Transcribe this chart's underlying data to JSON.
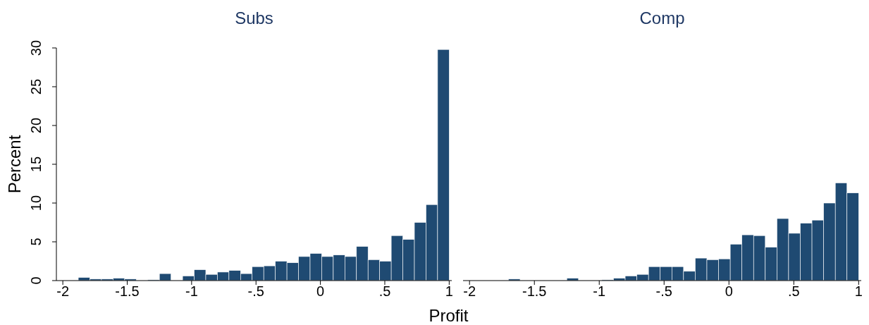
{
  "chart_data": [
    {
      "type": "histogram",
      "title": "Subs",
      "xlabel": "Profit",
      "ylabel": "Percent",
      "color": "#1f4a72",
      "bins": [
        -1.88,
        -1.79,
        -1.7,
        -1.61,
        -1.52,
        -1.43,
        -1.34,
        -1.25,
        -1.16,
        -1.07,
        -0.98,
        -0.89,
        -0.8,
        -0.71,
        -0.62,
        -0.53,
        -0.44,
        -0.35,
        -0.26,
        -0.17,
        -0.08,
        0.01,
        0.1,
        0.19,
        0.28,
        0.37,
        0.46,
        0.55,
        0.64,
        0.73,
        0.82,
        0.91,
        1.0
      ],
      "values": [
        0.4,
        0.2,
        0.2,
        0.3,
        0.2,
        0,
        0.1,
        0.9,
        0,
        0.6,
        1.4,
        0.8,
        1.1,
        1.3,
        0.9,
        1.8,
        1.9,
        2.5,
        2.3,
        3.1,
        3.5,
        3.1,
        3.3,
        3.1,
        4.4,
        2.7,
        2.5,
        5.8,
        5.3,
        7.5,
        9.8,
        29.8
      ],
      "xlim": [
        -2.05,
        1.02
      ],
      "xticks": [
        -2,
        {
          "value": -1.5,
          "label": "-1.5"
        },
        -1,
        {
          "value": -0.5,
          "label": "-.5"
        },
        0,
        {
          "value": 0.5,
          "label": ".5"
        },
        1
      ],
      "ylim": [
        0,
        30
      ],
      "yticks": [
        0,
        5,
        10,
        15,
        20,
        25,
        30
      ],
      "grid": false
    },
    {
      "type": "histogram",
      "title": "Comp",
      "color": "#1f4a72",
      "bins": [
        -1.88,
        -1.79,
        -1.7,
        -1.61,
        -1.52,
        -1.43,
        -1.34,
        -1.25,
        -1.16,
        -1.07,
        -0.98,
        -0.89,
        -0.8,
        -0.71,
        -0.62,
        -0.53,
        -0.44,
        -0.35,
        -0.26,
        -0.17,
        -0.08,
        0.01,
        0.1,
        0.19,
        0.28,
        0.37,
        0.46,
        0.55,
        0.64,
        0.73,
        0.82,
        0.91,
        1.0
      ],
      "values": [
        0,
        0,
        0.2,
        0,
        0,
        0,
        0,
        0.3,
        0,
        0,
        0.1,
        0.3,
        0.6,
        0.8,
        1.8,
        1.8,
        1.8,
        1.2,
        2.9,
        2.7,
        2.8,
        4.7,
        5.9,
        5.8,
        4.3,
        8.0,
        6.1,
        7.4,
        7.8,
        10.0,
        12.6,
        11.3
      ],
      "xlim": [
        -2.05,
        1.02
      ],
      "xticks": [
        -2,
        {
          "value": -1.5,
          "label": "-1.5"
        },
        -1,
        {
          "value": -0.5,
          "label": "-.5"
        },
        0,
        {
          "value": 0.5,
          "label": ".5"
        },
        1
      ],
      "ylim": [
        0,
        30
      ],
      "yticks": [
        0,
        5,
        10,
        15,
        20,
        25,
        30
      ],
      "tick_labels": "x",
      "grid": false
    }
  ]
}
